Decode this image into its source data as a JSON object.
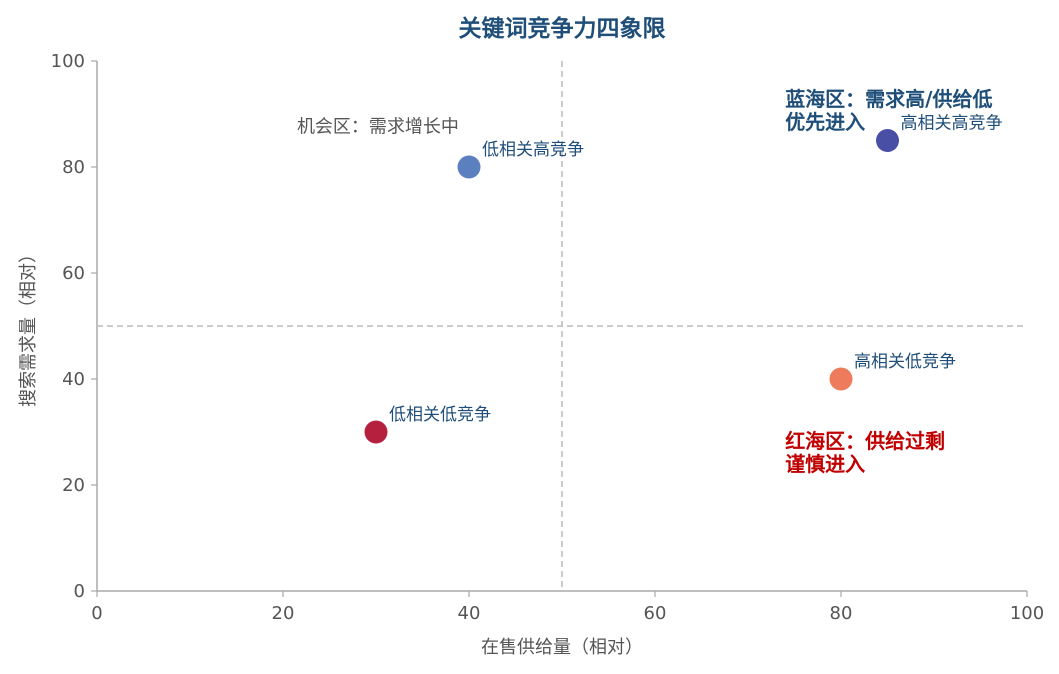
{
  "chart_data": {
    "type": "scatter",
    "title": "关键词竞争力四象限",
    "xlabel": "在售供给量（相对）",
    "ylabel": "搜索需求量（相对）",
    "xlim": [
      0,
      100
    ],
    "ylim": [
      0,
      100
    ],
    "xticks": [
      0,
      20,
      40,
      60,
      80,
      100
    ],
    "yticks": [
      0,
      20,
      40,
      60,
      80,
      100
    ],
    "grid": false,
    "divider_x": 50,
    "divider_y": 50,
    "points": [
      {
        "label": "低相关高竞争",
        "x": 40,
        "y": 80,
        "color": "#5B7FBF"
      },
      {
        "label": "高相关高竞争",
        "x": 85,
        "y": 85,
        "color": "#4A4FA6"
      },
      {
        "label": "高相关低竞争",
        "x": 80,
        "y": 40,
        "color": "#EE7B5C"
      },
      {
        "label": "低相关低竞争",
        "x": 30,
        "y": 30,
        "color": "#B5203F"
      }
    ],
    "annotations": [
      {
        "lines": [
          "机会区：需求增长中"
        ],
        "x": 21.5,
        "y": 86.5,
        "color": "#555555",
        "bold": false
      },
      {
        "lines": [
          "蓝海区：需求高/供给低",
          "优先进入"
        ],
        "x": 74,
        "y": 91.5,
        "color": "#1F4E79",
        "bold": true
      },
      {
        "lines": [
          "红海区：供给过剩",
          "谨慎进入"
        ],
        "x": 74,
        "y": 27,
        "color": "#C00000",
        "bold": true
      }
    ]
  }
}
